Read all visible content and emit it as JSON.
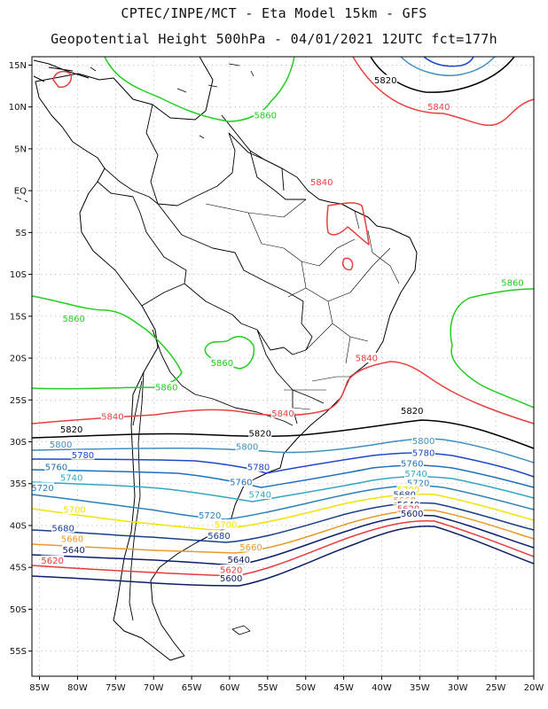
{
  "title_line1": "CPTEC/INPE/MCT -  Eta Model 15km - GFS",
  "title_line2": "Geopotential Height 500hPa - 04/01/2021 12UTC fct=177h",
  "map_extent": {
    "lon_min": -86,
    "lon_max": -20,
    "lat_min": -58,
    "lat_max": 16
  },
  "lat_ticks": [
    {
      "lat": 15,
      "label": "15N"
    },
    {
      "lat": 10,
      "label": "10N"
    },
    {
      "lat": 5,
      "label": "5N"
    },
    {
      "lat": 0,
      "label": "EQ"
    },
    {
      "lat": -5,
      "label": "5S"
    },
    {
      "lat": -10,
      "label": "10S"
    },
    {
      "lat": -15,
      "label": "15S"
    },
    {
      "lat": -20,
      "label": "20S"
    },
    {
      "lat": -25,
      "label": "25S"
    },
    {
      "lat": -30,
      "label": "30S"
    },
    {
      "lat": -35,
      "label": "35S"
    },
    {
      "lat": -40,
      "label": "40S"
    },
    {
      "lat": -45,
      "label": "45S"
    },
    {
      "lat": -50,
      "label": "50S"
    },
    {
      "lat": -55,
      "label": "55S"
    }
  ],
  "lon_ticks": [
    {
      "lon": -85,
      "label": "85W"
    },
    {
      "lon": -80,
      "label": "80W"
    },
    {
      "lon": -75,
      "label": "75W"
    },
    {
      "lon": -70,
      "label": "70W"
    },
    {
      "lon": -65,
      "label": "65W"
    },
    {
      "lon": -60,
      "label": "60W"
    },
    {
      "lon": -55,
      "label": "55W"
    },
    {
      "lon": -50,
      "label": "50W"
    },
    {
      "lon": -45,
      "label": "45W"
    },
    {
      "lon": -40,
      "label": "40W"
    },
    {
      "lon": -35,
      "label": "35W"
    },
    {
      "lon": -30,
      "label": "30W"
    },
    {
      "lon": -25,
      "label": "25W"
    },
    {
      "lon": -20,
      "label": "20W"
    }
  ],
  "contour_colors": {
    "5600": "#0c1f66",
    "5620": "#e83c3c",
    "5640": "#0a1e6e",
    "5660": "#e89a2a",
    "5680": "#173f8a",
    "5700": "#f2e200",
    "5720": "#2a7fb8",
    "5740": "#33a6c4",
    "5760": "#1f6fbf",
    "5780": "#1d47c9",
    "5800": "#3f8fc0",
    "5820": "#000000",
    "5840": "#e84040",
    "5860": "#22cc22"
  },
  "contour_labels": [
    {
      "text": "5820",
      "lon": -39.5,
      "lat": 13.2,
      "color_key": "5820"
    },
    {
      "text": "5840",
      "lon": -32.5,
      "lat": 10.0,
      "color_key": "5840"
    },
    {
      "text": "5860",
      "lon": -55.3,
      "lat": 9.0,
      "color_key": "5860"
    },
    {
      "text": "5840",
      "lon": -47.9,
      "lat": 1.0,
      "color_key": "5840"
    },
    {
      "text": "5860",
      "lon": -22.8,
      "lat": -11.0,
      "color_key": "5860"
    },
    {
      "text": "5860",
      "lon": -80.5,
      "lat": -15.3,
      "color_key": "5860"
    },
    {
      "text": "5860",
      "lon": -61.0,
      "lat": -20.6,
      "color_key": "5860"
    },
    {
      "text": "5860",
      "lon": -68.3,
      "lat": -23.5,
      "color_key": "5860"
    },
    {
      "text": "5840",
      "lon": -42.0,
      "lat": -20.0,
      "color_key": "5840"
    },
    {
      "text": "5840",
      "lon": -53.0,
      "lat": -26.6,
      "color_key": "5840"
    },
    {
      "text": "5840",
      "lon": -75.4,
      "lat": -27.0,
      "color_key": "5840"
    },
    {
      "text": "5820",
      "lon": -36.0,
      "lat": -26.3,
      "color_key": "5820"
    },
    {
      "text": "5820",
      "lon": -80.8,
      "lat": -28.5,
      "color_key": "5820"
    },
    {
      "text": "5820",
      "lon": -56.0,
      "lat": -29.0,
      "color_key": "5820"
    },
    {
      "text": "5800",
      "lon": -82.2,
      "lat": -30.3,
      "color_key": "5800"
    },
    {
      "text": "5800",
      "lon": -57.7,
      "lat": -30.6,
      "color_key": "5800"
    },
    {
      "text": "5800",
      "lon": -34.5,
      "lat": -29.9,
      "color_key": "5800"
    },
    {
      "text": "5780",
      "lon": -79.3,
      "lat": -31.6,
      "color_key": "5780"
    },
    {
      "text": "5780",
      "lon": -34.5,
      "lat": -31.3,
      "color_key": "5780"
    },
    {
      "text": "5780",
      "lon": -56.2,
      "lat": -33.0,
      "color_key": "5780"
    },
    {
      "text": "5760",
      "lon": -82.8,
      "lat": -33.0,
      "color_key": "5760"
    },
    {
      "text": "5760",
      "lon": -36.0,
      "lat": -32.6,
      "color_key": "5760"
    },
    {
      "text": "5740",
      "lon": -80.8,
      "lat": -34.3,
      "color_key": "5740"
    },
    {
      "text": "5740",
      "lon": -35.5,
      "lat": -33.8,
      "color_key": "5740"
    },
    {
      "text": "5760",
      "lon": -58.5,
      "lat": -34.8,
      "color_key": "5760"
    },
    {
      "text": "5720",
      "lon": -35.2,
      "lat": -34.9,
      "color_key": "5720"
    },
    {
      "text": "5720",
      "lon": -84.6,
      "lat": -35.5,
      "color_key": "5720"
    },
    {
      "text": "5740",
      "lon": -56.0,
      "lat": -36.3,
      "color_key": "5740"
    },
    {
      "text": "5700",
      "lon": -36.5,
      "lat": -35.7,
      "color_key": "5700"
    },
    {
      "text": "5680",
      "lon": -37.0,
      "lat": -36.3,
      "color_key": "5680"
    },
    {
      "text": "5660",
      "lon": -37.0,
      "lat": -37.0,
      "color_key": "5660"
    },
    {
      "text": "5640",
      "lon": -36.5,
      "lat": -37.5,
      "color_key": "5640"
    },
    {
      "text": "5700",
      "lon": -80.4,
      "lat": -38.1,
      "color_key": "5700"
    },
    {
      "text": "5620",
      "lon": -36.5,
      "lat": -38.0,
      "color_key": "5620"
    },
    {
      "text": "5600",
      "lon": -36.0,
      "lat": -38.6,
      "color_key": "5600"
    },
    {
      "text": "5720",
      "lon": -62.6,
      "lat": -38.8,
      "color_key": "5720"
    },
    {
      "text": "5700",
      "lon": -60.5,
      "lat": -39.9,
      "color_key": "5700"
    },
    {
      "text": "5680",
      "lon": -81.9,
      "lat": -40.3,
      "color_key": "5680"
    },
    {
      "text": "5680",
      "lon": -61.4,
      "lat": -41.2,
      "color_key": "5680"
    },
    {
      "text": "5660",
      "lon": -80.7,
      "lat": -41.6,
      "color_key": "5660"
    },
    {
      "text": "5660",
      "lon": -57.2,
      "lat": -42.6,
      "color_key": "5660"
    },
    {
      "text": "5640",
      "lon": -80.5,
      "lat": -42.9,
      "color_key": "5640"
    },
    {
      "text": "5620",
      "lon": -83.3,
      "lat": -44.2,
      "color_key": "5620"
    },
    {
      "text": "5640",
      "lon": -58.8,
      "lat": -44.1,
      "color_key": "5640"
    },
    {
      "text": "5620",
      "lon": -59.8,
      "lat": -45.3,
      "color_key": "5620"
    },
    {
      "text": "5600",
      "lon": -59.8,
      "lat": -46.3,
      "color_key": "5600"
    }
  ]
}
